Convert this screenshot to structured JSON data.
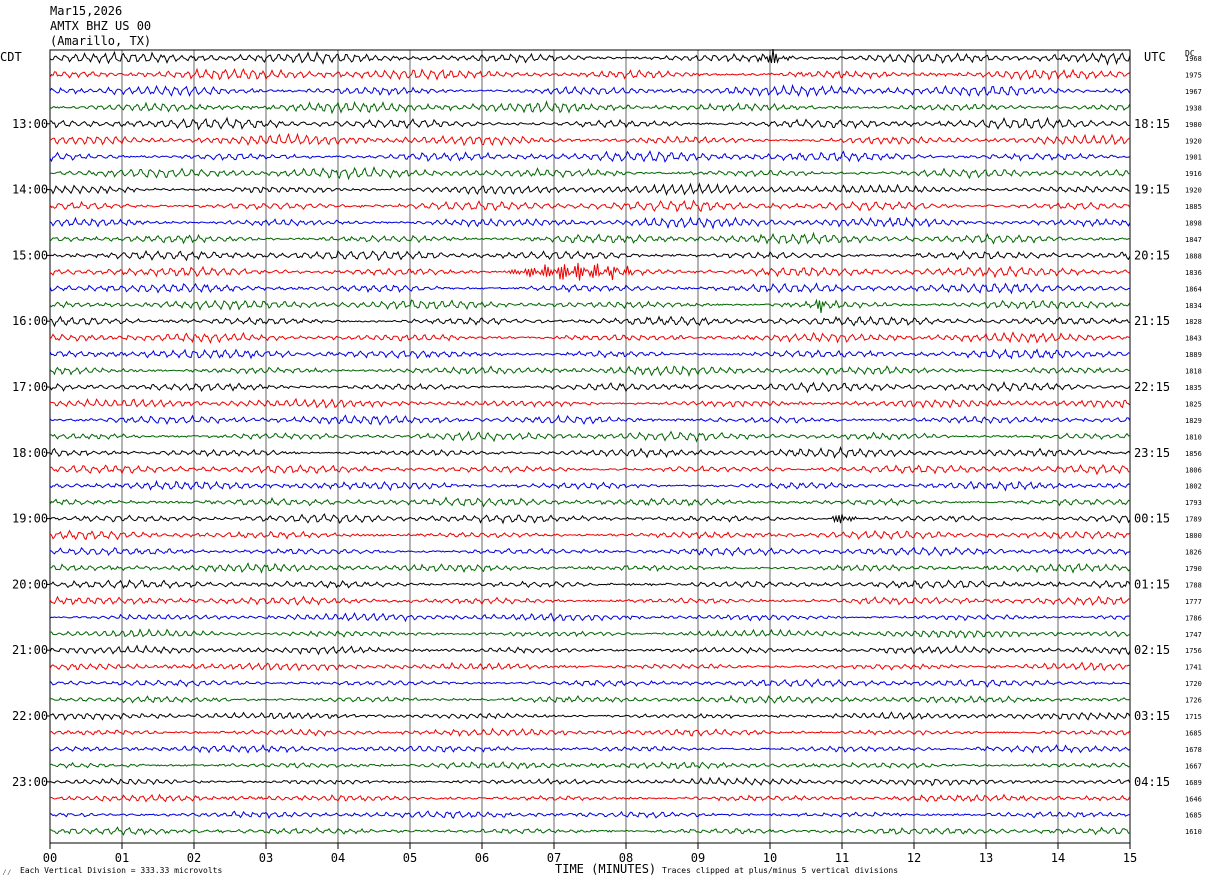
{
  "header": {
    "date": "Mar15,2026",
    "station": "AMTX BHZ US 00",
    "location": "(Amarillo, TX)"
  },
  "left_tz": "CDT",
  "right_tz": "UTC",
  "dc_label": "DC",
  "footer": {
    "scale": "Each Vertical Division =  333.33 microvolts",
    "clip": "Traces clipped at plus/minus 5 vertical divisions",
    "corner_mark": "⁄⁄"
  },
  "chart_data": {
    "type": "line",
    "title": "",
    "xlabel": "TIME (MINUTES)",
    "ylabel": "",
    "xlim": [
      0,
      15
    ],
    "x_ticks": [
      "00",
      "01",
      "02",
      "03",
      "04",
      "05",
      "06",
      "07",
      "08",
      "09",
      "10",
      "11",
      "12",
      "13",
      "14",
      "15"
    ],
    "left_hour_labels": [
      "13:00",
      "14:00",
      "15:00",
      "16:00",
      "17:00",
      "18:00",
      "19:00",
      "20:00",
      "21:00",
      "22:00",
      "23:00"
    ],
    "right_hour_labels": [
      "18:15",
      "19:15",
      "20:15",
      "21:15",
      "22:15",
      "23:15",
      "00:15",
      "01:15",
      "02:15",
      "03:15",
      "04:15"
    ],
    "trace_colors": [
      "#000000",
      "#ee0000",
      "#0000dd",
      "#006600"
    ],
    "dc_offsets": [
      "1968",
      "1975",
      "1967",
      "1938",
      "1980",
      "1920",
      "1901",
      "1916",
      "1920",
      "1885",
      "1898",
      "1847",
      "1888",
      "1836",
      "1864",
      "1834",
      "1828",
      "1843",
      "1889",
      "1818",
      "1835",
      "1825",
      "1829",
      "1810",
      "1856",
      "1806",
      "1802",
      "1793",
      "1789",
      "1800",
      "1826",
      "1790",
      "1788",
      "1777",
      "1786",
      "1747",
      "1756",
      "1741",
      "1720",
      "1726",
      "1715",
      "1685",
      "1678",
      "1667",
      "1689",
      "1646",
      "1685",
      "1610"
    ],
    "events": [
      {
        "row": 0,
        "minute": 10.05,
        "amplitude": "high"
      },
      {
        "row": 13,
        "minute": 7.3,
        "amplitude": "clipped"
      },
      {
        "row": 15,
        "minute": 10.7,
        "amplitude": "medium"
      },
      {
        "row": 28,
        "minute": 11.0,
        "amplitude": "medium"
      }
    ]
  }
}
